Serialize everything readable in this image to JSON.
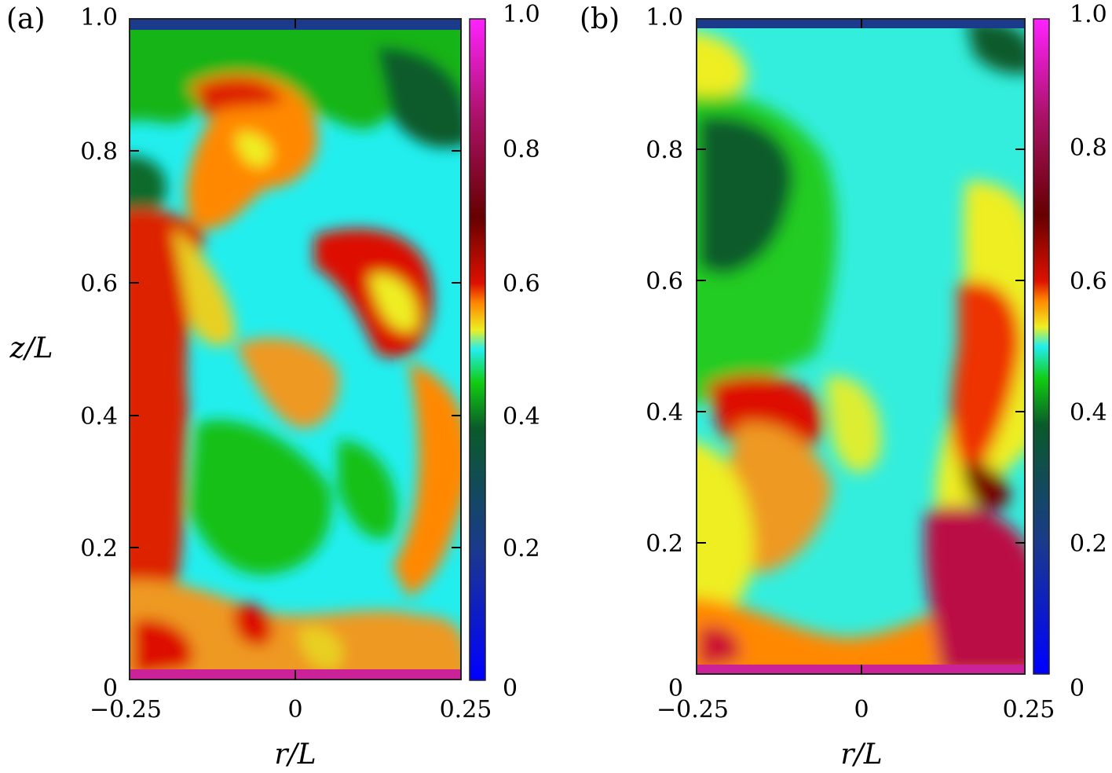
{
  "chart_data": [
    {
      "type": "heatmap",
      "panel_label": "(a)",
      "xlabel": "r/L",
      "ylabel": "z/L",
      "xlim": [
        -0.25,
        0.25
      ],
      "ylim": [
        0,
        1.0
      ],
      "x_ticks": [
        "−0.25",
        "0",
        "0.25"
      ],
      "y_ticks": [
        "0",
        "0.2",
        "0.4",
        "0.6",
        "0.8",
        "1.0"
      ],
      "colorbar": {
        "range": [
          0,
          1.0
        ],
        "ticks": [
          "0",
          "0.2",
          "0.4",
          "0.6",
          "0.8",
          "1.0"
        ]
      },
      "grid": false
    },
    {
      "type": "heatmap",
      "panel_label": "(b)",
      "xlabel": "r/L",
      "ylabel": "",
      "xlim": [
        -0.25,
        0.25
      ],
      "ylim": [
        0,
        1.0
      ],
      "x_ticks": [
        "−0.25",
        "0",
        "0.25"
      ],
      "y_ticks": [
        "0",
        "0.2",
        "0.4",
        "0.6",
        "0.8",
        "1.0"
      ],
      "colorbar": {
        "range": [
          0,
          1.0
        ],
        "ticks": [
          "0",
          "0.2",
          "0.4",
          "0.6",
          "0.8",
          "1.0"
        ]
      },
      "grid": false
    }
  ],
  "colormap": {
    "stops": [
      [
        0.0,
        "#0000ff"
      ],
      [
        0.2,
        "#1a3a8c"
      ],
      [
        0.38,
        "#0a5a2a"
      ],
      [
        0.45,
        "#11cc11"
      ],
      [
        0.5,
        "#22eeee"
      ],
      [
        0.53,
        "#eeee22"
      ],
      [
        0.57,
        "#ff8800"
      ],
      [
        0.6,
        "#dd1100"
      ],
      [
        0.7,
        "#660000"
      ],
      [
        0.85,
        "#aa1166"
      ],
      [
        1.0,
        "#ff22ff"
      ]
    ]
  }
}
